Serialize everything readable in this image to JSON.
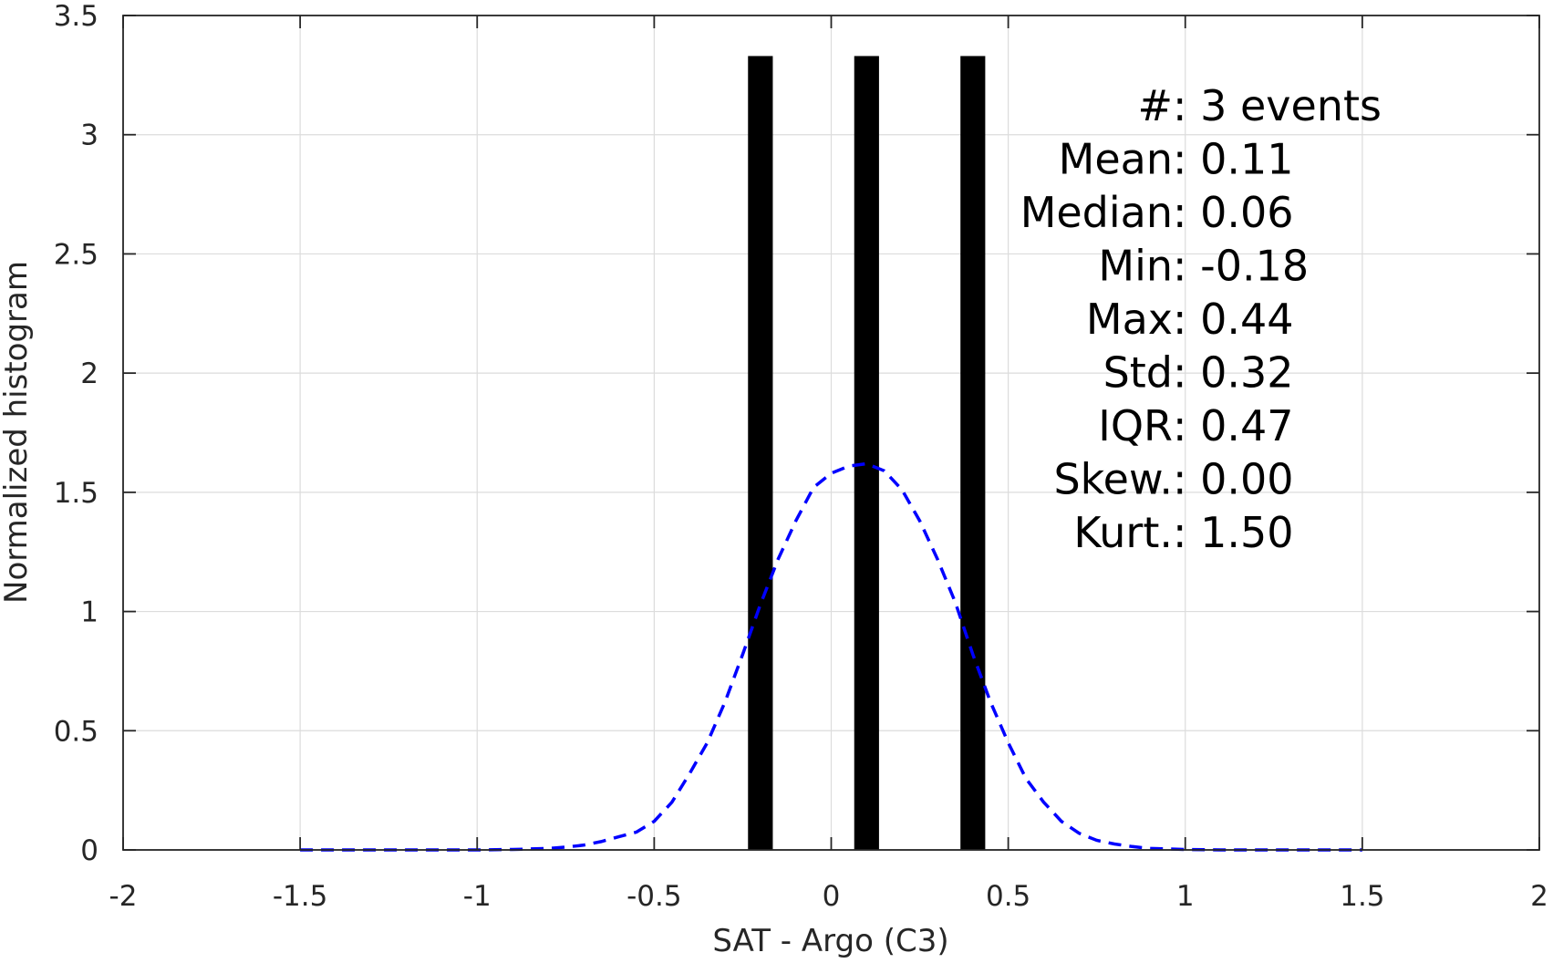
{
  "chart_data": {
    "type": "bar",
    "title": "",
    "xlabel": "SAT - Argo (C3)",
    "ylabel": "Normalized histogram",
    "xlim": [
      -2,
      2
    ],
    "ylim": [
      0,
      3.5
    ],
    "grid": true,
    "x_ticks": [
      -2,
      -1.5,
      -1,
      -0.5,
      0,
      0.5,
      1,
      1.5,
      2
    ],
    "x_tick_labels": [
      "-2",
      "-1.5",
      "-1",
      "-0.5",
      "0",
      "0.5",
      "1",
      "1.5",
      "2"
    ],
    "y_ticks": [
      0,
      0.5,
      1,
      1.5,
      2,
      2.5,
      3,
      3.5
    ],
    "y_tick_labels": [
      "0",
      "0.5",
      "1",
      "1.5",
      "2",
      "2.5",
      "3",
      "3.5"
    ],
    "bars": {
      "color": "#000000",
      "bin_width": 0.07,
      "x": [
        -0.2,
        0.1,
        0.4
      ],
      "values": [
        3.33,
        3.33,
        3.33
      ]
    },
    "fit_curve": {
      "color": "#0000ff",
      "style": "dashed",
      "x": [
        -1.5,
        -1.3,
        -1.1,
        -1.0,
        -0.9,
        -0.8,
        -0.75,
        -0.7,
        -0.65,
        -0.6,
        -0.55,
        -0.5,
        -0.45,
        -0.4,
        -0.35,
        -0.3,
        -0.25,
        -0.2,
        -0.15,
        -0.1,
        -0.05,
        0.0,
        0.05,
        0.1,
        0.15,
        0.2,
        0.25,
        0.3,
        0.35,
        0.4,
        0.45,
        0.5,
        0.55,
        0.6,
        0.65,
        0.7,
        0.75,
        0.8,
        0.85,
        0.9,
        1.0,
        1.1,
        1.3,
        1.5
      ],
      "y": [
        0.0,
        0.0,
        0.0,
        0.0,
        0.002,
        0.006,
        0.012,
        0.02,
        0.035,
        0.055,
        0.075,
        0.12,
        0.2,
        0.32,
        0.45,
        0.62,
        0.82,
        1.03,
        1.22,
        1.38,
        1.52,
        1.58,
        1.61,
        1.62,
        1.59,
        1.51,
        1.38,
        1.22,
        1.04,
        0.82,
        0.62,
        0.45,
        0.3,
        0.2,
        0.12,
        0.07,
        0.04,
        0.025,
        0.014,
        0.006,
        0.002,
        0.0,
        0.0,
        0.0
      ]
    },
    "annotation_position": "top-right",
    "annotations": [
      {
        "label": "#  ",
        "value": ": 3 events"
      },
      {
        "label": "Mean ",
        "value": ": 0.11"
      },
      {
        "label": "Median ",
        "value": ": 0.06"
      },
      {
        "label": "Min ",
        "value": ": -0.18"
      },
      {
        "label": "Max ",
        "value": ": 0.44"
      },
      {
        "label": "Std ",
        "value": ": 0.32"
      },
      {
        "label": "IQR ",
        "value": ": 0.47"
      },
      {
        "label": "Skew. ",
        "value": ": 0.00"
      },
      {
        "label": "Kurt. ",
        "value": ": 1.50"
      }
    ]
  }
}
